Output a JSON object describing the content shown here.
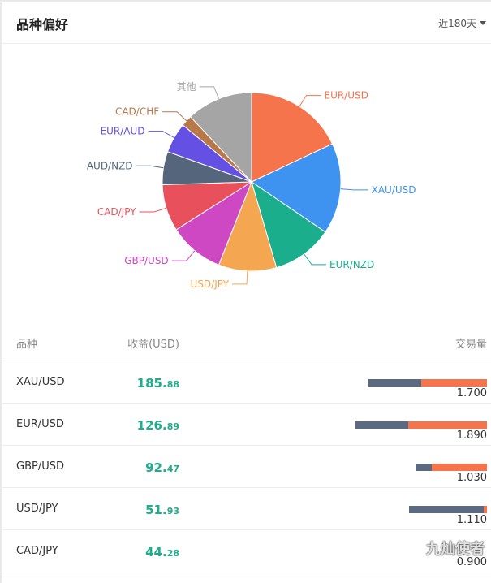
{
  "header": {
    "title": "品种偏好",
    "period": "近180天"
  },
  "chart_data": {
    "type": "pie",
    "slices": [
      {
        "name": "EUR/USD",
        "value": 18.0,
        "color": "#f5744c"
      },
      {
        "name": "XAU/USD",
        "value": 16.5,
        "color": "#3e93f0"
      },
      {
        "name": "EUR/NZD",
        "value": 11.0,
        "color": "#1aae8c"
      },
      {
        "name": "USD/JPY",
        "value": 10.5,
        "color": "#f4a650"
      },
      {
        "name": "GBP/USD",
        "value": 10.0,
        "color": "#ce47c3"
      },
      {
        "name": "CAD/JPY",
        "value": 8.5,
        "color": "#e8505b"
      },
      {
        "name": "AUD/NZD",
        "value": 6.0,
        "color": "#55667c"
      },
      {
        "name": "EUR/AUD",
        "value": 5.5,
        "color": "#6450e2"
      },
      {
        "name": "CAD/CHF",
        "value": 2.0,
        "color": "#b8784a"
      },
      {
        "name": "其他",
        "value": 12.0,
        "color": "#a5a5a5"
      }
    ]
  },
  "table": {
    "columns": {
      "symbol": "品种",
      "profit": "收益(USD)",
      "volume": "交易量"
    },
    "rows": [
      {
        "symbol": "XAU/USD",
        "profit_int": "185.",
        "profit_dec": "88",
        "volume": "1.700",
        "sell_frac": 0.36,
        "buy_frac": 0.45
      },
      {
        "symbol": "EUR/USD",
        "profit_int": "126.",
        "profit_dec": "89",
        "volume": "1.890",
        "sell_frac": 0.36,
        "buy_frac": 0.54
      },
      {
        "symbol": "GBP/USD",
        "profit_int": "92.",
        "profit_dec": "47",
        "volume": "1.030",
        "sell_frac": 0.11,
        "buy_frac": 0.38
      },
      {
        "symbol": "USD/JPY",
        "profit_int": "51.",
        "profit_dec": "93",
        "volume": "1.110",
        "sell_frac": 0.51,
        "buy_frac": 0.025
      },
      {
        "symbol": "CAD/JPY",
        "profit_int": "44.",
        "profit_dec": "28",
        "volume": "0.900",
        "sell_frac": 0.0,
        "buy_frac": 0.0
      }
    ]
  },
  "watermark": "九灿使者"
}
